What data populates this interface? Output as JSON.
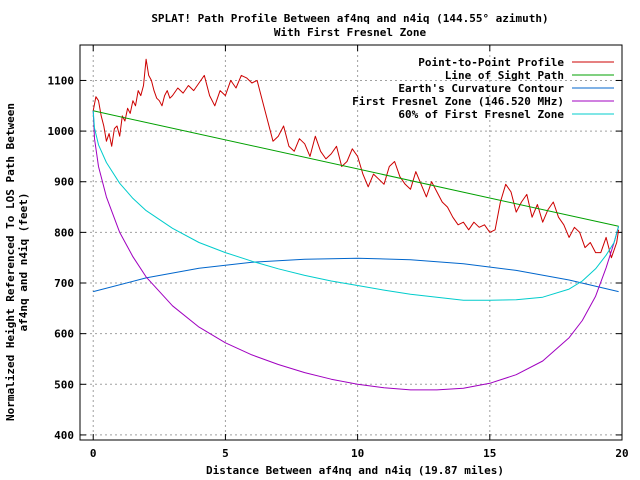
{
  "chart_data": {
    "type": "line",
    "title": "SPLAT! Path Profile Between af4nq and n4iq (144.55° azimuth)",
    "subtitle": "With First Fresnel Zone",
    "xlabel": "Distance Between af4nq and n4iq (19.87 miles)",
    "ylabel": "Normalized Height Referenced To LOS Path Between af4nq and n4iq (feet)",
    "xlim": [
      -0.5,
      20
    ],
    "ylim": [
      390,
      1170
    ],
    "xticks": [
      0,
      5,
      10,
      15,
      20
    ],
    "yticks": [
      400,
      500,
      600,
      700,
      800,
      900,
      1000,
      1100
    ],
    "grid": true,
    "legend_position": "top-right",
    "series": [
      {
        "name": "Point-to-Point Profile",
        "color": "#cc0000",
        "x": [
          0,
          0.1,
          0.2,
          0.3,
          0.4,
          0.5,
          0.6,
          0.7,
          0.8,
          0.9,
          1.0,
          1.1,
          1.2,
          1.3,
          1.4,
          1.5,
          1.6,
          1.7,
          1.8,
          1.9,
          2.0,
          2.1,
          2.2,
          2.3,
          2.4,
          2.5,
          2.6,
          2.7,
          2.8,
          2.9,
          3.0,
          3.2,
          3.4,
          3.6,
          3.8,
          4.0,
          4.2,
          4.4,
          4.6,
          4.8,
          5.0,
          5.2,
          5.4,
          5.6,
          5.8,
          6.0,
          6.2,
          6.4,
          6.6,
          6.8,
          7.0,
          7.2,
          7.4,
          7.6,
          7.8,
          8.0,
          8.2,
          8.4,
          8.6,
          8.8,
          9.0,
          9.2,
          9.4,
          9.6,
          9.8,
          10.0,
          10.2,
          10.4,
          10.6,
          10.8,
          11.0,
          11.2,
          11.4,
          11.6,
          11.8,
          12.0,
          12.2,
          12.4,
          12.6,
          12.8,
          13.0,
          13.2,
          13.4,
          13.6,
          13.8,
          14.0,
          14.2,
          14.4,
          14.6,
          14.8,
          15.0,
          15.2,
          15.4,
          15.6,
          15.8,
          16.0,
          16.2,
          16.4,
          16.6,
          16.8,
          17.0,
          17.2,
          17.4,
          17.6,
          17.8,
          18.0,
          18.2,
          18.4,
          18.6,
          18.8,
          19.0,
          19.2,
          19.4,
          19.6,
          19.8,
          19.87
        ],
        "y": [
          1040,
          1068,
          1060,
          1030,
          1010,
          980,
          995,
          970,
          1005,
          1010,
          990,
          1030,
          1020,
          1045,
          1035,
          1060,
          1050,
          1080,
          1070,
          1090,
          1142,
          1110,
          1100,
          1080,
          1065,
          1060,
          1050,
          1070,
          1080,
          1065,
          1070,
          1085,
          1075,
          1090,
          1080,
          1095,
          1110,
          1070,
          1050,
          1080,
          1070,
          1100,
          1085,
          1110,
          1105,
          1095,
          1100,
          1060,
          1020,
          980,
          990,
          1010,
          970,
          960,
          985,
          975,
          950,
          990,
          960,
          945,
          955,
          970,
          930,
          940,
          965,
          950,
          915,
          890,
          915,
          905,
          895,
          930,
          940,
          910,
          895,
          885,
          920,
          895,
          870,
          900,
          880,
          860,
          850,
          830,
          815,
          820,
          805,
          820,
          810,
          815,
          800,
          805,
          860,
          895,
          880,
          840,
          860,
          875,
          830,
          855,
          820,
          845,
          860,
          830,
          815,
          790,
          810,
          800,
          770,
          780,
          760,
          760,
          790,
          750,
          780,
          805
        ]
      },
      {
        "name": "Line of Sight Path",
        "color": "#00a000",
        "x": [
          0,
          19.87
        ],
        "y": [
          1040,
          812
        ]
      },
      {
        "name": "Earth's Curvature Contour",
        "color": "#0066cc",
        "x": [
          0,
          2,
          4,
          6,
          8,
          10,
          12,
          14,
          16,
          18,
          19.87
        ],
        "y": [
          683,
          710,
          729,
          741,
          747,
          749,
          746,
          738,
          725,
          706,
          683
        ]
      },
      {
        "name": "First Fresnel Zone (146.520 MHz)",
        "color": "#a000c0",
        "x": [
          0,
          0.05,
          0.2,
          0.5,
          1,
          1.5,
          2,
          3,
          4,
          5,
          6,
          7,
          8,
          9,
          10,
          11,
          12,
          13,
          14,
          15,
          16,
          17,
          18,
          18.5,
          19,
          19.4,
          19.7,
          19.87
        ],
        "y": [
          1040,
          985,
          930,
          870,
          800,
          752,
          712,
          655,
          613,
          582,
          558,
          539,
          523,
          510,
          500,
          493,
          489,
          489,
          492,
          502,
          519,
          546,
          592,
          626,
          674,
          730,
          780,
          812
        ]
      },
      {
        "name": "60% of First Fresnel Zone",
        "color": "#00cccc",
        "x": [
          0,
          0.05,
          0.2,
          0.5,
          1,
          1.5,
          2,
          3,
          4,
          5,
          6,
          7,
          8,
          9,
          10,
          11,
          12,
          13,
          14,
          15,
          16,
          17,
          18,
          18.5,
          19,
          19.4,
          19.7,
          19.87
        ],
        "y": [
          1040,
          1006,
          973,
          938,
          897,
          867,
          843,
          808,
          780,
          760,
          743,
          728,
          715,
          704,
          695,
          686,
          678,
          672,
          666,
          666,
          667,
          672,
          688,
          704,
          728,
          755,
          780,
          812
        ]
      }
    ]
  }
}
